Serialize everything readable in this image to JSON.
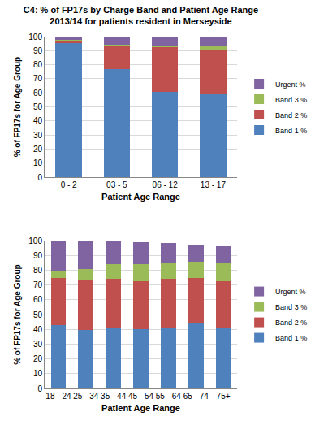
{
  "chart_data": [
    {
      "type": "bar",
      "title": [
        "C4: % of FP17s by Charge Band and Patient Age Range",
        "2013/14 for patients resident in Merseyside"
      ],
      "x_label": "Patient Age Range",
      "y_label": "% of FP17s for Age Group",
      "categories": [
        "0 - 2",
        "03 - 5",
        "06 - 12",
        "13 - 17"
      ],
      "series": [
        {
          "name": "Band 1 %",
          "color": "#4F81BD",
          "values": [
            95.5,
            77,
            61,
            59
          ]
        },
        {
          "name": "Band 2 %",
          "color": "#C0504D",
          "values": [
            2,
            17,
            32,
            31.5
          ]
        },
        {
          "name": "Band 3 %",
          "color": "#9BBB59",
          "values": [
            0.3,
            0.5,
            0.7,
            3
          ]
        },
        {
          "name": "Urgent %",
          "color": "#8064A2",
          "values": [
            2,
            5.5,
            6.3,
            6
          ]
        }
      ],
      "stacked": true,
      "ylim": [
        0,
        100
      ],
      "yticks": [
        0,
        10,
        20,
        30,
        40,
        50,
        60,
        70,
        80,
        90,
        100
      ],
      "grid": true,
      "legend": "right"
    },
    {
      "type": "bar",
      "x_label": "Patient Age Range",
      "y_label": "% of FP17s for Age Group",
      "categories": [
        "18 - 24",
        "25 - 34",
        "35 - 44",
        "45 - 54",
        "55 - 64",
        "65 - 74",
        "75+"
      ],
      "series": [
        {
          "name": "Band 1 %",
          "color": "#4F81BD",
          "values": [
            43,
            39.5,
            41,
            40,
            41.5,
            44,
            41
          ]
        },
        {
          "name": "Band 2 %",
          "color": "#C0504D",
          "values": [
            32,
            34,
            33,
            32.5,
            33,
            31,
            31.5
          ]
        },
        {
          "name": "Band 3 %",
          "color": "#9BBB59",
          "values": [
            5,
            7.5,
            10,
            11.5,
            10.5,
            11,
            13
          ]
        },
        {
          "name": "Urgent %",
          "color": "#8064A2",
          "values": [
            19.5,
            18.5,
            15.5,
            15,
            13.5,
            11.5,
            10.5
          ]
        }
      ],
      "stacked": true,
      "ylim": [
        0,
        100
      ],
      "yticks": [
        0,
        10,
        20,
        30,
        40,
        50,
        60,
        70,
        80,
        90,
        100
      ],
      "grid": true,
      "legend": "right"
    }
  ]
}
